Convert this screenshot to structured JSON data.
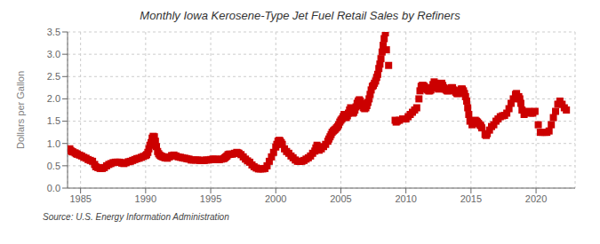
{
  "chart_data": {
    "type": "scatter",
    "title": "Monthly Iowa Kerosene-Type Jet Fuel Retail Sales by Refiners",
    "ylabel": "Dollars per Gallon",
    "annotations": [
      "Source: U.S. Energy Information Administration"
    ],
    "xlim": [
      1984,
      2023
    ],
    "xticks": [
      1985,
      1990,
      1995,
      2000,
      2005,
      2010,
      2015,
      2020
    ],
    "ylim": [
      0.0,
      3.5
    ],
    "yticks": [
      {
        "value": 0.0,
        "label": "0.0"
      },
      0.5,
      {
        "value": 1.0,
        "label": "1.0"
      },
      1.5,
      {
        "value": 2.0,
        "label": "2.0"
      },
      2.5,
      {
        "value": 3.0,
        "label": "3.0"
      },
      3.5
    ],
    "grid": true,
    "color": "#cc0000",
    "marker": "square",
    "x": [
      1984.17,
      1984.25,
      1984.33,
      1984.42,
      1984.58,
      1984.67,
      1984.75,
      1984.92,
      1985.08,
      1985.25,
      1985.42,
      1985.58,
      1985.75,
      1985.92,
      1986.08,
      1986.17,
      1986.33,
      1986.5,
      1986.67,
      1986.83,
      1987.0,
      1987.17,
      1987.33,
      1987.5,
      1987.67,
      1987.83,
      1988.0,
      1988.17,
      1988.33,
      1988.5,
      1988.67,
      1988.83,
      1989.0,
      1989.17,
      1989.33,
      1989.5,
      1989.67,
      1989.83,
      1990.0,
      1990.08,
      1990.17,
      1990.25,
      1990.33,
      1990.42,
      1990.5,
      1990.58,
      1990.67,
      1990.75,
      1990.83,
      1990.92,
      1991.0,
      1991.08,
      1991.17,
      1991.25,
      1991.33,
      1991.42,
      1991.5,
      1991.67,
      1991.83,
      1992.0,
      1992.17,
      1992.33,
      1992.5,
      1992.67,
      1992.83,
      1993.0,
      1993.17,
      1993.33,
      1993.5,
      1993.67,
      1993.83,
      1994.0,
      1994.17,
      1994.33,
      1994.5,
      1994.67,
      1994.83,
      1995.0,
      1995.17,
      1995.33,
      1995.5,
      1995.67,
      1995.83,
      1996.0,
      1996.08,
      1996.17,
      1996.25,
      1996.33,
      1996.42,
      1996.5,
      1996.67,
      1996.83,
      1997.0,
      1997.08,
      1997.17,
      1997.33,
      1997.5,
      1997.67,
      1997.83,
      1998.0,
      1998.17,
      1998.33,
      1998.5,
      1998.67,
      1998.83,
      1999.0,
      1999.17,
      1999.33,
      1999.5,
      1999.67,
      1999.83,
      2000.0,
      2000.08,
      2000.17,
      2000.25,
      2000.33,
      2000.42,
      2000.5,
      2000.67,
      2000.83,
      2001.0,
      2001.17,
      2001.33,
      2001.5,
      2001.67,
      2001.83,
      2002.0,
      2002.17,
      2002.33,
      2002.5,
      2002.67,
      2002.83,
      2003.0,
      2003.08,
      2003.17,
      2003.25,
      2003.33,
      2003.5,
      2003.67,
      2003.83,
      2004.0,
      2004.08,
      2004.17,
      2004.25,
      2004.33,
      2004.42,
      2004.5,
      2004.58,
      2004.67,
      2004.75,
      2004.83,
      2004.92,
      2005.0,
      2005.08,
      2005.17,
      2005.25,
      2005.33,
      2005.42,
      2005.5,
      2005.58,
      2005.67,
      2005.75,
      2005.83,
      2005.92,
      2006.0,
      2006.08,
      2006.17,
      2006.25,
      2006.33,
      2006.42,
      2006.5,
      2006.58,
      2006.67,
      2006.75,
      2006.83,
      2006.92,
      2007.0,
      2007.08,
      2007.17,
      2007.25,
      2007.33,
      2007.42,
      2007.5,
      2007.58,
      2007.67,
      2007.75,
      2007.83,
      2007.92,
      2008.0,
      2008.08,
      2008.17,
      2008.25,
      2008.33,
      2008.42,
      2008.5,
      2008.67,
      2009.17,
      2009.25,
      2009.33,
      2009.5,
      2009.75,
      2010.0,
      2010.17,
      2010.33,
      2010.5,
      2010.67,
      2010.83,
      2011.0,
      2011.08,
      2011.17,
      2011.25,
      2011.33,
      2011.42,
      2011.5,
      2011.58,
      2011.67,
      2011.75,
      2011.83,
      2011.92,
      2012.0,
      2012.08,
      2012.17,
      2012.25,
      2012.33,
      2012.42,
      2012.5,
      2012.58,
      2012.67,
      2012.75,
      2012.83,
      2012.92,
      2013.0,
      2013.08,
      2013.17,
      2013.25,
      2013.33,
      2013.42,
      2013.5,
      2013.58,
      2013.67,
      2013.75,
      2013.83,
      2013.92,
      2014.0,
      2014.08,
      2014.17,
      2014.25,
      2014.33,
      2014.42,
      2014.5,
      2014.58,
      2014.67,
      2014.75,
      2014.83,
      2014.92,
      2015.08,
      2015.17,
      2015.25,
      2015.33,
      2015.42,
      2015.5,
      2015.58,
      2015.67,
      2015.75,
      2015.83,
      2016.08,
      2016.17,
      2016.25,
      2016.42,
      2016.58,
      2016.75,
      2016.92,
      2017.08,
      2017.25,
      2017.42,
      2017.58,
      2017.75,
      2017.92,
      2018.08,
      2018.25,
      2018.42,
      2018.5,
      2018.67,
      2018.75,
      2018.83,
      2018.92,
      2019.08,
      2019.25,
      2019.42,
      2019.58,
      2019.75,
      2019.92,
      2020.17,
      2020.33,
      2020.5,
      2020.67,
      2020.83,
      2021.0,
      2021.17,
      2021.33,
      2021.5,
      2021.67,
      2021.83,
      2022.0,
      2022.17,
      2022.33
    ],
    "values": [
      0.88,
      0.84,
      0.82,
      0.81,
      0.79,
      0.77,
      0.76,
      0.74,
      0.72,
      0.69,
      0.67,
      0.64,
      0.62,
      0.6,
      0.53,
      0.48,
      0.46,
      0.44,
      0.44,
      0.46,
      0.5,
      0.53,
      0.55,
      0.57,
      0.58,
      0.58,
      0.58,
      0.56,
      0.55,
      0.57,
      0.59,
      0.6,
      0.62,
      0.64,
      0.66,
      0.67,
      0.69,
      0.71,
      0.73,
      0.75,
      0.8,
      0.88,
      0.96,
      1.02,
      1.12,
      1.16,
      1.15,
      1.05,
      0.93,
      0.82,
      0.77,
      0.74,
      0.72,
      0.71,
      0.7,
      0.69,
      0.68,
      0.67,
      0.7,
      0.73,
      0.74,
      0.72,
      0.7,
      0.69,
      0.68,
      0.67,
      0.66,
      0.65,
      0.63,
      0.63,
      0.63,
      0.63,
      0.62,
      0.62,
      0.62,
      0.63,
      0.63,
      0.64,
      0.65,
      0.65,
      0.64,
      0.64,
      0.65,
      0.66,
      0.68,
      0.7,
      0.72,
      0.75,
      0.76,
      0.76,
      0.76,
      0.78,
      0.8,
      0.79,
      0.78,
      0.75,
      0.7,
      0.65,
      0.61,
      0.58,
      0.52,
      0.48,
      0.45,
      0.43,
      0.43,
      0.43,
      0.44,
      0.5,
      0.6,
      0.7,
      0.8,
      0.92,
      0.98,
      1.05,
      1.07,
      1.06,
      1.02,
      0.98,
      0.88,
      0.82,
      0.78,
      0.72,
      0.68,
      0.63,
      0.6,
      0.6,
      0.6,
      0.62,
      0.65,
      0.68,
      0.72,
      0.78,
      0.83,
      0.9,
      0.96,
      0.9,
      0.85,
      0.88,
      0.93,
      0.98,
      1.05,
      1.1,
      1.15,
      1.2,
      1.25,
      1.28,
      1.3,
      1.32,
      1.35,
      1.38,
      1.42,
      1.48,
      1.52,
      1.55,
      1.6,
      1.65,
      1.6,
      1.58,
      1.62,
      1.68,
      1.75,
      1.8,
      1.72,
      1.68,
      1.7,
      1.75,
      1.82,
      1.9,
      1.95,
      1.98,
      1.95,
      1.9,
      1.85,
      1.8,
      1.78,
      1.8,
      1.85,
      1.92,
      2.0,
      2.1,
      2.2,
      2.28,
      2.3,
      2.35,
      2.4,
      2.48,
      2.55,
      2.68,
      2.78,
      2.9,
      3.05,
      3.2,
      3.35,
      3.48,
      3.1,
      2.75,
      1.52,
      1.48,
      1.5,
      1.52,
      1.55,
      1.55,
      1.6,
      1.65,
      1.7,
      1.75,
      1.8,
      2.0,
      2.18,
      2.28,
      2.3,
      2.3,
      2.28,
      2.25,
      2.22,
      2.2,
      2.18,
      2.18,
      2.2,
      2.25,
      2.32,
      2.38,
      2.35,
      2.3,
      2.25,
      2.22,
      2.28,
      2.32,
      2.35,
      2.3,
      2.25,
      2.22,
      2.2,
      2.18,
      2.18,
      2.2,
      2.22,
      2.25,
      2.25,
      2.2,
      2.18,
      2.15,
      2.12,
      2.12,
      2.15,
      2.18,
      2.22,
      2.22,
      2.18,
      2.12,
      2.05,
      1.95,
      1.8,
      1.65,
      1.5,
      1.42,
      1.45,
      1.5,
      1.52,
      1.5,
      1.48,
      1.45,
      1.42,
      1.4,
      1.35,
      1.2,
      1.18,
      1.22,
      1.3,
      1.38,
      1.42,
      1.5,
      1.55,
      1.6,
      1.62,
      1.63,
      1.68,
      1.78,
      1.9,
      2.0,
      2.1,
      2.12,
      2.05,
      2.0,
      1.9,
      1.75,
      1.65,
      1.7,
      1.72,
      1.68,
      1.68,
      1.72,
      1.42,
      1.25,
      1.25,
      1.25,
      1.25,
      1.28,
      1.42,
      1.58,
      1.72,
      1.88,
      1.95,
      1.88,
      1.8,
      1.75
    ]
  }
}
